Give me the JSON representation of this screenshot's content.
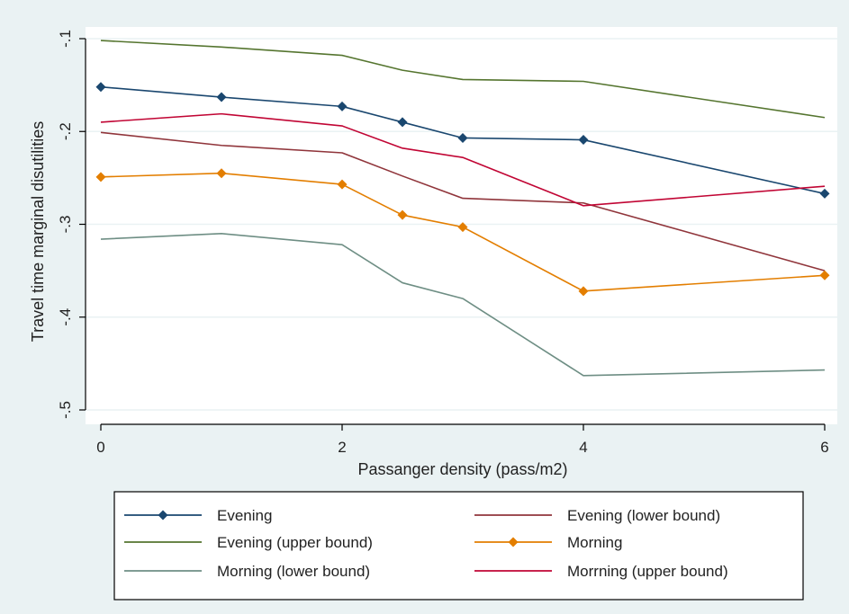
{
  "chart_data": {
    "type": "line",
    "title": "",
    "xlabel": "Passanger density (pass/m2)",
    "ylabel": "Travel time marginal disutilities",
    "xlim": [
      0,
      6
    ],
    "ylim": [
      -0.5,
      -0.1
    ],
    "xticks": [
      0,
      2,
      4,
      6
    ],
    "xtick_labels": [
      "0",
      "2",
      "4",
      "6"
    ],
    "yticks": [
      -0.1,
      -0.2,
      -0.3,
      -0.4,
      -0.5
    ],
    "ytick_labels": [
      "-.1",
      "-.2",
      "-.3",
      "-.4",
      "-.5"
    ],
    "grid": "horizontal",
    "legend_position": "bottom",
    "x": [
      0,
      1,
      2,
      2.5,
      3,
      4,
      6
    ],
    "series": [
      {
        "name": "Evening",
        "values": [
          -0.152,
          -0.163,
          -0.173,
          -0.19,
          -0.207,
          -0.209,
          -0.267
        ],
        "color": "#1a476f",
        "markers": true
      },
      {
        "name": "Evening (lower bound)",
        "values": [
          -0.201,
          -0.215,
          -0.223,
          -0.248,
          -0.272,
          -0.277,
          -0.35
        ],
        "color": "#90353b",
        "markers": false
      },
      {
        "name": "Evening (upper bound)",
        "values": [
          -0.102,
          -0.109,
          -0.118,
          -0.134,
          -0.144,
          -0.146,
          -0.185
        ],
        "color": "#55752f",
        "markers": false
      },
      {
        "name": "Morning",
        "values": [
          -0.249,
          -0.245,
          -0.257,
          -0.29,
          -0.303,
          -0.372,
          -0.355
        ],
        "color": "#e37e00",
        "markers": true
      },
      {
        "name": "Morning (lower bound)",
        "values": [
          -0.316,
          -0.31,
          -0.322,
          -0.363,
          -0.38,
          -0.463,
          -0.457
        ],
        "color": "#6e8e84",
        "markers": false
      },
      {
        "name": "Morrning (upper bound)",
        "values": [
          -0.19,
          -0.181,
          -0.194,
          -0.218,
          -0.228,
          -0.28,
          -0.259
        ],
        "color": "#c10534",
        "markers": false
      }
    ],
    "legend_order": [
      0,
      1,
      2,
      3,
      4,
      5
    ]
  },
  "colors": {
    "background": "#eaf2f3",
    "plot_background": "#ffffff",
    "grid": "#eaf2f3",
    "axis": "#000000"
  }
}
